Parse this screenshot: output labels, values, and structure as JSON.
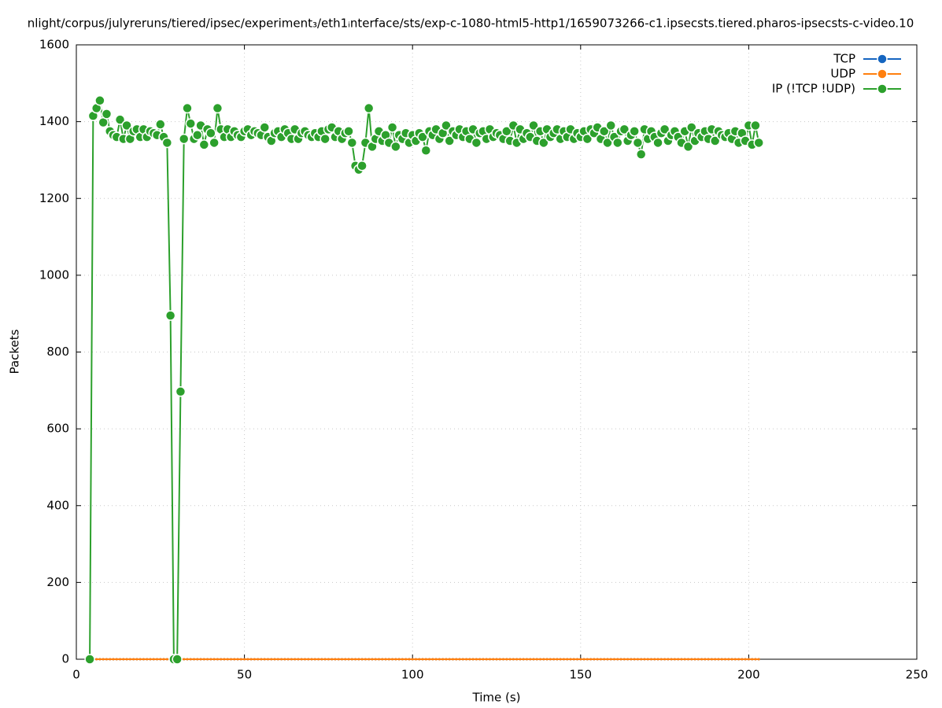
{
  "chart_data": {
    "type": "line",
    "title": "nlight/corpus/julyreruns/tiered/ipsec/experiment₃/eth1ᵢnterface/sts/exp-c-1080-html5-http1/1659073266-c1.ipsecsts.tiered.pharos-ipsecsts-c-video.10",
    "x_label": "Time (s)",
    "y_label": "Packets",
    "xlim": [
      0,
      250
    ],
    "xticks": [
      0,
      50,
      100,
      150,
      200,
      250
    ],
    "ylim": [
      0,
      1600
    ],
    "yticks": [
      0,
      200,
      400,
      600,
      800,
      1000,
      1200,
      1400,
      1600
    ],
    "grid": true,
    "legend": "top-right",
    "x": [
      4,
      5,
      6,
      7,
      8,
      9,
      10,
      11,
      12,
      13,
      14,
      15,
      16,
      17,
      18,
      19,
      20,
      21,
      22,
      23,
      24,
      25,
      26,
      27,
      28,
      29,
      30,
      31,
      32,
      33,
      34,
      35,
      36,
      37,
      38,
      39,
      40,
      41,
      42,
      43,
      44,
      45,
      46,
      47,
      48,
      49,
      50,
      51,
      52,
      53,
      54,
      55,
      56,
      57,
      58,
      59,
      60,
      61,
      62,
      63,
      64,
      65,
      66,
      67,
      68,
      69,
      70,
      71,
      72,
      73,
      74,
      75,
      76,
      77,
      78,
      79,
      80,
      81,
      82,
      83,
      84,
      85,
      86,
      87,
      88,
      89,
      90,
      91,
      92,
      93,
      94,
      95,
      96,
      97,
      98,
      99,
      100,
      101,
      102,
      103,
      104,
      105,
      106,
      107,
      108,
      109,
      110,
      111,
      112,
      113,
      114,
      115,
      116,
      117,
      118,
      119,
      120,
      121,
      122,
      123,
      124,
      125,
      126,
      127,
      128,
      129,
      130,
      131,
      132,
      133,
      134,
      135,
      136,
      137,
      138,
      139,
      140,
      141,
      142,
      143,
      144,
      145,
      146,
      147,
      148,
      149,
      150,
      151,
      152,
      153,
      154,
      155,
      156,
      157,
      158,
      159,
      160,
      161,
      162,
      163,
      164,
      165,
      166,
      167,
      168,
      169,
      170,
      171,
      172,
      173,
      174,
      175,
      176,
      177,
      178,
      179,
      180,
      181,
      182,
      183,
      184,
      185,
      186,
      187,
      188,
      189,
      190,
      191,
      192,
      193,
      194,
      195,
      196,
      197,
      198,
      199,
      200,
      201,
      202,
      203
    ],
    "series": [
      {
        "name": "TCP",
        "color": "#1565c0",
        "values": [
          0,
          0,
          0,
          0,
          0,
          0,
          0,
          0,
          0,
          0,
          0,
          0,
          0,
          0,
          0,
          0,
          0,
          0,
          0,
          0,
          0,
          0,
          0,
          0,
          0,
          0,
          0,
          0,
          0,
          0,
          0,
          0,
          0,
          0,
          0,
          0,
          0,
          0,
          0,
          0,
          0,
          0,
          0,
          0,
          0,
          0,
          0,
          0,
          0,
          0,
          0,
          0,
          0,
          0,
          0,
          0,
          0,
          0,
          0,
          0,
          0,
          0,
          0,
          0,
          0,
          0,
          0,
          0,
          0,
          0,
          0,
          0,
          0,
          0,
          0,
          0,
          0,
          0,
          0,
          0,
          0,
          0,
          0,
          0,
          0,
          0,
          0,
          0,
          0,
          0,
          0,
          0,
          0,
          0,
          0,
          0,
          0,
          0,
          0,
          0,
          0,
          0,
          0,
          0,
          0,
          0,
          0,
          0,
          0,
          0,
          0,
          0,
          0,
          0,
          0,
          0,
          0,
          0,
          0,
          0,
          0,
          0,
          0,
          0,
          0,
          0,
          0,
          0,
          0,
          0,
          0,
          0,
          0,
          0,
          0,
          0,
          0,
          0,
          0,
          0,
          0,
          0,
          0,
          0,
          0,
          0,
          0,
          0,
          0,
          0,
          0,
          0,
          0,
          0,
          0,
          0,
          0,
          0,
          0,
          0,
          0,
          0,
          0,
          0,
          0,
          0,
          0,
          0,
          0,
          0,
          0,
          0,
          0,
          0,
          0,
          0,
          0,
          0,
          0,
          0,
          0,
          0,
          0,
          0,
          0,
          0,
          0,
          0,
          0,
          0,
          0,
          0,
          0,
          0,
          0,
          0,
          0,
          0,
          0,
          0
        ]
      },
      {
        "name": "UDP",
        "color": "#ff7f0e",
        "values": [
          0,
          0,
          0,
          0,
          0,
          0,
          0,
          0,
          0,
          0,
          0,
          0,
          0,
          0,
          0,
          0,
          0,
          0,
          0,
          0,
          0,
          0,
          0,
          0,
          0,
          0,
          0,
          0,
          0,
          0,
          0,
          0,
          0,
          0,
          0,
          0,
          0,
          0,
          0,
          0,
          0,
          0,
          0,
          0,
          0,
          0,
          0,
          0,
          0,
          0,
          0,
          0,
          0,
          0,
          0,
          0,
          0,
          0,
          0,
          0,
          0,
          0,
          0,
          0,
          0,
          0,
          0,
          0,
          0,
          0,
          0,
          0,
          0,
          0,
          0,
          0,
          0,
          0,
          0,
          0,
          0,
          0,
          0,
          0,
          0,
          0,
          0,
          0,
          0,
          0,
          0,
          0,
          0,
          0,
          0,
          0,
          0,
          0,
          0,
          0,
          0,
          0,
          0,
          0,
          0,
          0,
          0,
          0,
          0,
          0,
          0,
          0,
          0,
          0,
          0,
          0,
          0,
          0,
          0,
          0,
          0,
          0,
          0,
          0,
          0,
          0,
          0,
          0,
          0,
          0,
          0,
          0,
          0,
          0,
          0,
          0,
          0,
          0,
          0,
          0,
          0,
          0,
          0,
          0,
          0,
          0,
          0,
          0,
          0,
          0,
          0,
          0,
          0,
          0,
          0,
          0,
          0,
          0,
          0,
          0,
          0,
          0,
          0,
          0,
          0,
          0,
          0,
          0,
          0,
          0,
          0,
          0,
          0,
          0,
          0,
          0,
          0,
          0,
          0,
          0,
          0,
          0,
          0,
          0,
          0,
          0,
          0,
          0,
          0,
          0,
          0,
          0,
          0,
          0,
          0,
          0,
          0,
          0,
          0,
          0
        ]
      },
      {
        "name": "IP (!TCP  !UDP)",
        "color": "#2ca02c",
        "values": [
          0,
          1415,
          1435,
          1455,
          1398,
          1420,
          1375,
          1365,
          1360,
          1405,
          1355,
          1390,
          1355,
          1375,
          1380,
          1360,
          1380,
          1360,
          1375,
          1370,
          1365,
          1393,
          1360,
          1345,
          895,
          0,
          0,
          697,
          1355,
          1435,
          1395,
          1355,
          1365,
          1390,
          1340,
          1380,
          1370,
          1345,
          1435,
          1380,
          1360,
          1380,
          1360,
          1375,
          1365,
          1360,
          1375,
          1380,
          1365,
          1375,
          1370,
          1365,
          1385,
          1360,
          1350,
          1370,
          1375,
          1360,
          1380,
          1370,
          1355,
          1380,
          1355,
          1370,
          1375,
          1365,
          1360,
          1370,
          1360,
          1375,
          1355,
          1380,
          1385,
          1360,
          1375,
          1355,
          1370,
          1375,
          1345,
          1285,
          1275,
          1285,
          1345,
          1435,
          1335,
          1355,
          1375,
          1350,
          1365,
          1345,
          1385,
          1335,
          1365,
          1355,
          1370,
          1345,
          1365,
          1350,
          1370,
          1360,
          1325,
          1375,
          1365,
          1380,
          1355,
          1370,
          1390,
          1350,
          1375,
          1365,
          1380,
          1360,
          1375,
          1355,
          1380,
          1345,
          1370,
          1375,
          1355,
          1380,
          1360,
          1370,
          1365,
          1355,
          1375,
          1350,
          1390,
          1345,
          1380,
          1355,
          1370,
          1360,
          1390,
          1350,
          1375,
          1345,
          1380,
          1360,
          1370,
          1380,
          1355,
          1375,
          1360,
          1380,
          1355,
          1370,
          1360,
          1375,
          1355,
          1380,
          1370,
          1385,
          1355,
          1375,
          1345,
          1390,
          1360,
          1345,
          1375,
          1380,
          1350,
          1365,
          1375,
          1345,
          1315,
          1380,
          1355,
          1375,
          1360,
          1345,
          1370,
          1380,
          1350,
          1365,
          1375,
          1360,
          1345,
          1375,
          1335,
          1385,
          1350,
          1370,
          1360,
          1375,
          1355,
          1380,
          1350,
          1375,
          1365,
          1360,
          1370,
          1355,
          1375,
          1345,
          1370,
          1350,
          1390,
          1340,
          1390,
          1345
        ]
      }
    ]
  }
}
